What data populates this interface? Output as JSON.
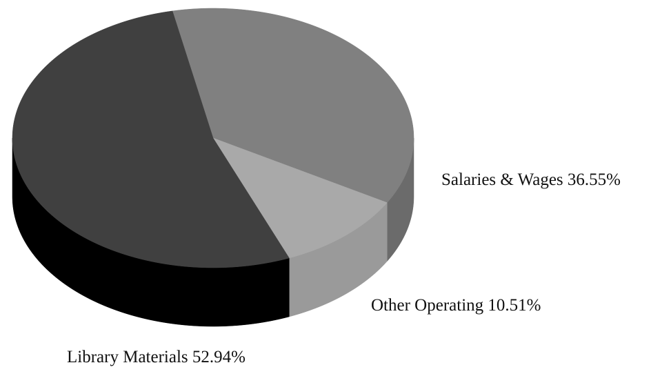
{
  "chart_data": {
    "type": "pie",
    "categories": [
      "Salaries & Wages",
      "Other Operating",
      "Library Materials"
    ],
    "values": [
      36.55,
      10.51,
      52.94
    ],
    "value_labels": [
      "36.55%",
      "10.51%",
      "52.94%"
    ],
    "colors": [
      "#808080",
      "#a9a9a9",
      "#404040"
    ],
    "side_colors": [
      "#6b6b6b",
      "#9a9a9a",
      "#000000"
    ]
  }
}
